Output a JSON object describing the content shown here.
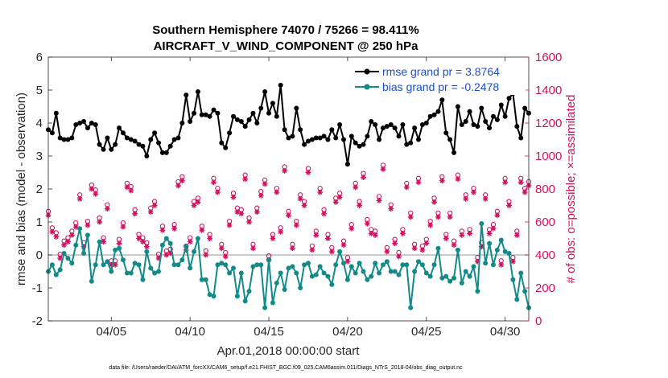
{
  "chart_data": {
    "type": "line",
    "title": "Southern Hemisphere 74070 / 75266 = 98.411%",
    "subtitle": "AIRCRAFT_V_WIND_COMPONENT @ 250 hPa",
    "xlabel": "Apr.01,2018 00:00:00 start",
    "ylabel": "rmse and bias (model - observation)",
    "ylabel_right": "# of obs: o=possible; ×=assimilated",
    "footer": "data file: /Users/raeder/DAI/ATM_forcXX/CAM6_setup/f.e21.FHIST_BGC.f09_025.CAM6assim.011/Diags_NTrS_2018-04/obs_diag_output.nc",
    "xlim": [
      1,
      31.5
    ],
    "ylim": [
      -2,
      6
    ],
    "ylim_right": [
      0,
      1600
    ],
    "x_ticks": [
      5,
      10,
      15,
      20,
      25,
      30
    ],
    "x_tick_labels": [
      "04/05",
      "04/10",
      "04/15",
      "04/20",
      "04/25",
      "04/30"
    ],
    "y_ticks": [
      -2,
      -1,
      0,
      1,
      2,
      3,
      4,
      5,
      6
    ],
    "y_tick_labels": [
      "-2",
      "-1",
      "0",
      "1",
      "2",
      "3",
      "4",
      "5",
      "6"
    ],
    "y2_ticks": [
      0,
      200,
      400,
      600,
      800,
      1000,
      1200,
      1400,
      1600
    ],
    "y2_tick_labels": [
      "0",
      "200",
      "400",
      "600",
      "800",
      "1000",
      "1200",
      "1400",
      "1600"
    ],
    "x_start": 1.0,
    "x_step": 0.25,
    "legend": {
      "location": "top-right",
      "entries": [
        {
          "label": "rmse grand pr = 3.8764",
          "color": "#000000"
        },
        {
          "label": "bias grand pr = -0.2478",
          "color": "#138a8a"
        }
      ]
    },
    "series": [
      {
        "name": "rmse",
        "axis": "left",
        "color": "#000000",
        "values": [
          3.8,
          3.7,
          4.3,
          3.55,
          3.5,
          3.5,
          3.55,
          3.95,
          4.0,
          4.05,
          3.85,
          4.0,
          3.95,
          3.35,
          3.2,
          3.55,
          3.2,
          3.35,
          3.85,
          3.7,
          3.55,
          3.5,
          3.45,
          3.35,
          3.3,
          3.0,
          3.5,
          3.7,
          3.4,
          3.1,
          3.1,
          3.3,
          3.5,
          3.55,
          4.0,
          4.85,
          4.05,
          4.3,
          4.95,
          4.25,
          4.25,
          4.2,
          4.4,
          4.3,
          3.4,
          3.25,
          3.7,
          4.2,
          4.1,
          4.05,
          3.9,
          4.1,
          4.3,
          4.0,
          4.45,
          4.95,
          4.3,
          4.6,
          4.2,
          5.15,
          3.8,
          3.55,
          3.6,
          4.45,
          3.8,
          3.35,
          3.45,
          3.5,
          3.55,
          3.55,
          3.6,
          3.5,
          3.8,
          3.55,
          3.95,
          3.5,
          2.75,
          3.6,
          3.4,
          3.3,
          3.35,
          3.6,
          4.05,
          3.95,
          3.5,
          3.85,
          3.9,
          3.95,
          3.85,
          3.6,
          3.95,
          3.35,
          3.4,
          3.85,
          3.5,
          3.95,
          4.0,
          4.2,
          4.25,
          4.35,
          4.7,
          3.7,
          3.5,
          3.1,
          4.5,
          3.95,
          4.05,
          4.35,
          3.95,
          3.9,
          4.45,
          4.05,
          3.85,
          4.2,
          4.1,
          4.55,
          4.2,
          4.75,
          4.9,
          3.9,
          3.55,
          4.45,
          4.3
        ]
      },
      {
        "name": "bias",
        "axis": "left",
        "color": "#138a8a",
        "values": [
          -0.5,
          -0.3,
          -0.6,
          -0.45,
          0.05,
          -0.1,
          -0.25,
          0.3,
          0.8,
          0.05,
          0.6,
          -0.8,
          -0.3,
          0.4,
          -0.3,
          -0.2,
          -0.5,
          0.15,
          0.2,
          -0.15,
          -0.55,
          -0.55,
          -0.25,
          -0.3,
          -0.75,
          0.1,
          -0.4,
          -0.55,
          -0.5,
          0.3,
          0.5,
          0.35,
          -0.3,
          -0.3,
          -0.15,
          0.25,
          -0.4,
          0.1,
          0.5,
          -0.75,
          -0.75,
          -1.2,
          -1.25,
          -0.3,
          -0.25,
          -0.3,
          -0.55,
          -0.4,
          -1.25,
          -0.55,
          -1.4,
          -1.1,
          -0.35,
          -0.3,
          -0.3,
          -1.6,
          -0.15,
          -1.45,
          -0.85,
          -0.55,
          -1.05,
          -0.4,
          -0.35,
          -0.55,
          -1.0,
          -0.3,
          -0.25,
          -0.65,
          -0.6,
          -0.35,
          -0.55,
          -0.65,
          -0.9,
          -0.3,
          0.1,
          -0.25,
          -0.75,
          -0.35,
          -0.55,
          -0.25,
          -0.5,
          -0.75,
          -0.65,
          -0.25,
          -0.55,
          -0.3,
          -0.2,
          -0.5,
          -0.5,
          -0.6,
          -0.3,
          -0.3,
          -1.6,
          -0.5,
          -0.2,
          -0.3,
          -0.55,
          -0.65,
          -0.3,
          0.2,
          -0.7,
          -0.65,
          -0.8,
          -0.7,
          0.15,
          -0.85,
          -0.5,
          -0.65,
          -0.35,
          -1.1,
          0.95,
          -0.25,
          0.35,
          -0.3,
          0.15,
          0.45,
          0.1,
          0.05,
          -0.75,
          -1.35,
          -0.55,
          -1.1,
          -1.6
        ]
      },
      {
        "name": "possible",
        "axis": "right",
        "marker": "o",
        "color": "#d0105e",
        "values": [
          640,
          540,
          510,
          380,
          460,
          480,
          520,
          570,
          740,
          450,
          580,
          800,
          770,
          600,
          480,
          680,
          340,
          340,
          470,
          570,
          810,
          790,
          650,
          500,
          480,
          450,
          660,
          700,
          380,
          550,
          400,
          410,
          560,
          820,
          850,
          430,
          480,
          700,
          720,
          550,
          400,
          500,
          840,
          780,
          440,
          390,
          580,
          750,
          660,
          650,
          860,
          600,
          440,
          660,
          760,
          830,
          370,
          500,
          780,
          540,
          910,
          640,
          440,
          580,
          740,
          700,
          900,
          430,
          520,
          780,
          650,
          500,
          420,
          720,
          750,
          460,
          360,
          560,
          810,
          700,
          870,
          590,
          530,
          520,
          730,
          920,
          420,
          680,
          470,
          390,
          530,
          810,
          630,
          440,
          840,
          430,
          470,
          580,
          720,
          630,
          850,
          500,
          630,
          460,
          860,
          520,
          740,
          530,
          780,
          360,
          450,
          740,
          530,
          560,
          640,
          340,
          840,
          700,
          360,
          520,
          840,
          780,
          820
        ]
      },
      {
        "name": "assimilated",
        "axis": "right",
        "marker": "x",
        "color": "#d0105e",
        "values": [
          640,
          540,
          510,
          380,
          460,
          480,
          520,
          570,
          740,
          450,
          580,
          800,
          770,
          600,
          480,
          680,
          340,
          340,
          470,
          570,
          810,
          790,
          650,
          500,
          480,
          450,
          660,
          700,
          380,
          550,
          400,
          410,
          560,
          820,
          850,
          430,
          480,
          700,
          720,
          550,
          400,
          500,
          840,
          780,
          440,
          390,
          580,
          750,
          660,
          650,
          860,
          600,
          440,
          660,
          760,
          830,
          370,
          500,
          780,
          540,
          910,
          640,
          440,
          580,
          740,
          700,
          900,
          430,
          520,
          780,
          650,
          500,
          420,
          720,
          750,
          460,
          360,
          560,
          810,
          700,
          870,
          590,
          530,
          520,
          730,
          920,
          420,
          680,
          470,
          390,
          530,
          810,
          630,
          440,
          840,
          430,
          470,
          580,
          720,
          630,
          850,
          500,
          630,
          460,
          860,
          520,
          740,
          530,
          780,
          360,
          450,
          740,
          530,
          560,
          640,
          340,
          840,
          700,
          360,
          520,
          840,
          780,
          820
        ]
      }
    ]
  }
}
